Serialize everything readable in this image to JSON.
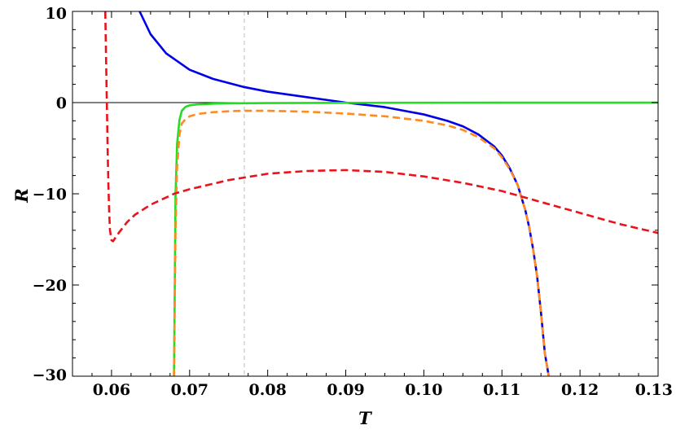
{
  "chart_data": {
    "type": "line",
    "xlabel": "T",
    "ylabel": "R",
    "xlim": [
      0.055,
      0.13
    ],
    "ylim": [
      -30,
      10
    ],
    "x_ticks": [
      0.06,
      0.07,
      0.08,
      0.09,
      0.1,
      0.11,
      0.12,
      0.13
    ],
    "x_tick_labels": [
      "0.06",
      "0.07",
      "0.08",
      "0.09",
      "0.10",
      "0.11",
      "0.12",
      "0.13"
    ],
    "y_ticks": [
      10,
      0,
      -10,
      -20,
      -30
    ],
    "y_tick_labels": [
      "10",
      "0",
      "−10",
      "−20",
      "−30"
    ],
    "reference_lines": {
      "horizontal_y": 0,
      "vertical_dashed_x": 0.077
    },
    "grid": false,
    "series": [
      {
        "color": "#0000e6",
        "style": "solid",
        "x": [
          0.0636,
          0.065,
          0.067,
          0.07,
          0.073,
          0.077,
          0.08,
          0.085,
          0.09,
          0.095,
          0.1,
          0.103,
          0.105,
          0.107,
          0.109,
          0.11,
          0.111,
          0.112,
          0.113,
          0.1135,
          0.114,
          0.1145,
          0.115,
          0.1155,
          0.116
        ],
        "y": [
          10,
          7.5,
          5.4,
          3.6,
          2.6,
          1.7,
          1.2,
          0.6,
          0.0,
          -0.5,
          -1.3,
          -2.0,
          -2.6,
          -3.5,
          -4.8,
          -5.8,
          -7.2,
          -9.0,
          -11.8,
          -13.7,
          -16.1,
          -19.0,
          -23.0,
          -27.5,
          -30
        ]
      },
      {
        "color": "#22dd22",
        "style": "solid",
        "x": [
          0.068,
          0.0681,
          0.0682,
          0.0684,
          0.0687,
          0.069,
          0.0695,
          0.07,
          0.071,
          0.073,
          0.075,
          0.08,
          0.09,
          0.1,
          0.11,
          0.12,
          0.13
        ],
        "y": [
          -30,
          -20,
          -10,
          -4.5,
          -1.9,
          -0.9,
          -0.45,
          -0.3,
          -0.2,
          -0.12,
          -0.08,
          -0.05,
          -0.03,
          -0.02,
          -0.01,
          -0.005,
          0
        ]
      },
      {
        "color": "#ff8a1f",
        "style": "dashed",
        "x": [
          0.068,
          0.0681,
          0.0682,
          0.0684,
          0.0687,
          0.069,
          0.0695,
          0.07,
          0.071,
          0.073,
          0.075,
          0.077,
          0.08,
          0.085,
          0.09,
          0.095,
          0.1,
          0.103,
          0.105,
          0.107,
          0.109,
          0.11,
          0.111,
          0.112,
          0.113,
          0.1135,
          0.114,
          0.1145,
          0.115,
          0.1155,
          0.116
        ],
        "y": [
          -30,
          -22,
          -14,
          -7,
          -3.5,
          -2.3,
          -1.8,
          -1.5,
          -1.25,
          -1.05,
          -0.95,
          -0.9,
          -0.9,
          -1.0,
          -1.2,
          -1.5,
          -2.0,
          -2.5,
          -3.0,
          -3.8,
          -5.0,
          -6.0,
          -7.3,
          -9.0,
          -11.8,
          -13.7,
          -16.1,
          -19.0,
          -23.0,
          -27.5,
          -30
        ]
      },
      {
        "color": "#e8141c",
        "style": "dashed",
        "x": [
          0.0592,
          0.0593,
          0.0594,
          0.0595,
          0.0596,
          0.0597,
          0.0598,
          0.06,
          0.0602,
          0.0605,
          0.061,
          0.062,
          0.063,
          0.065,
          0.068,
          0.07,
          0.075,
          0.08,
          0.085,
          0.09,
          0.095,
          0.1,
          0.105,
          0.11,
          0.115,
          0.12,
          0.125,
          0.13
        ],
        "y": [
          10,
          5,
          0,
          -5,
          -9,
          -12,
          -14,
          -15.1,
          -15.2,
          -14.8,
          -14.2,
          -13.1,
          -12.3,
          -11.2,
          -10.0,
          -9.5,
          -8.5,
          -7.8,
          -7.5,
          -7.4,
          -7.6,
          -8.1,
          -8.8,
          -9.7,
          -10.9,
          -12.1,
          -13.3,
          -14.3
        ]
      }
    ]
  }
}
